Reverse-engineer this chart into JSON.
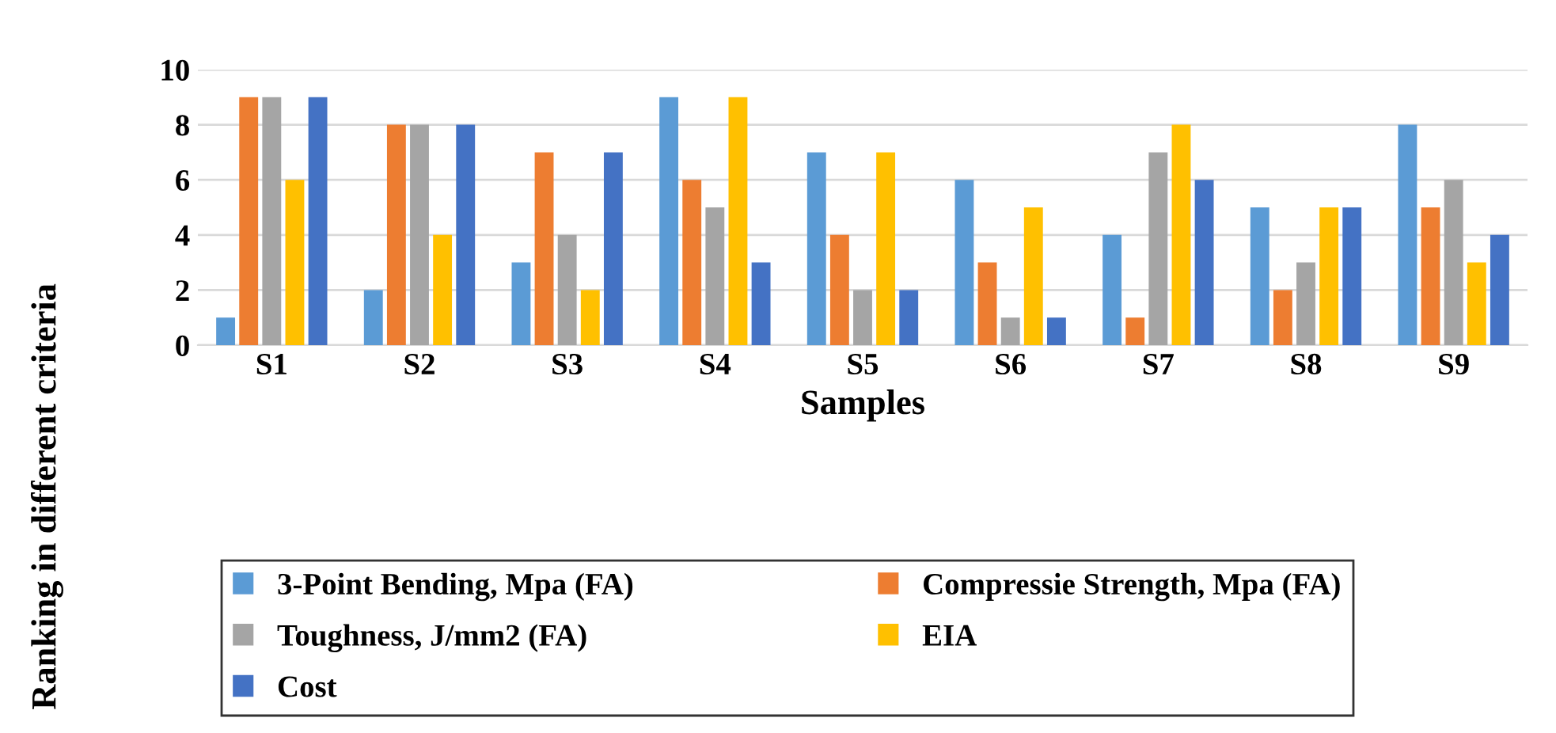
{
  "chart_data": {
    "type": "bar",
    "xlabel": "Samples",
    "ylabel": "Ranking in different criteria",
    "categories": [
      "S1",
      "S2",
      "S3",
      "S4",
      "S5",
      "S6",
      "S7",
      "S8",
      "S9"
    ],
    "series": [
      {
        "name": "3-Point Bending, Mpa (FA)",
        "color": "#5b9bd5",
        "values": [
          1,
          2,
          3,
          9,
          7,
          6,
          4,
          5,
          8
        ]
      },
      {
        "name": "Compressie Strength, Mpa (FA)",
        "color": "#ed7d31",
        "values": [
          9,
          8,
          7,
          6,
          4,
          3,
          1,
          2,
          5
        ]
      },
      {
        "name": "Toughness, J/mm2 (FA)",
        "color": "#a5a5a5",
        "values": [
          9,
          8,
          4,
          5,
          2,
          1,
          7,
          3,
          6
        ]
      },
      {
        "name": "EIA",
        "color": "#ffc000",
        "values": [
          6,
          4,
          2,
          9,
          7,
          5,
          8,
          5,
          3
        ]
      },
      {
        "name": "Cost",
        "color": "#4472c4",
        "values": [
          9,
          8,
          7,
          3,
          2,
          1,
          6,
          5,
          4
        ]
      }
    ],
    "ylim": [
      0,
      10
    ],
    "yticks": [
      0,
      2,
      4,
      6,
      8,
      10
    ],
    "grid": "y",
    "legend": "bottom"
  }
}
